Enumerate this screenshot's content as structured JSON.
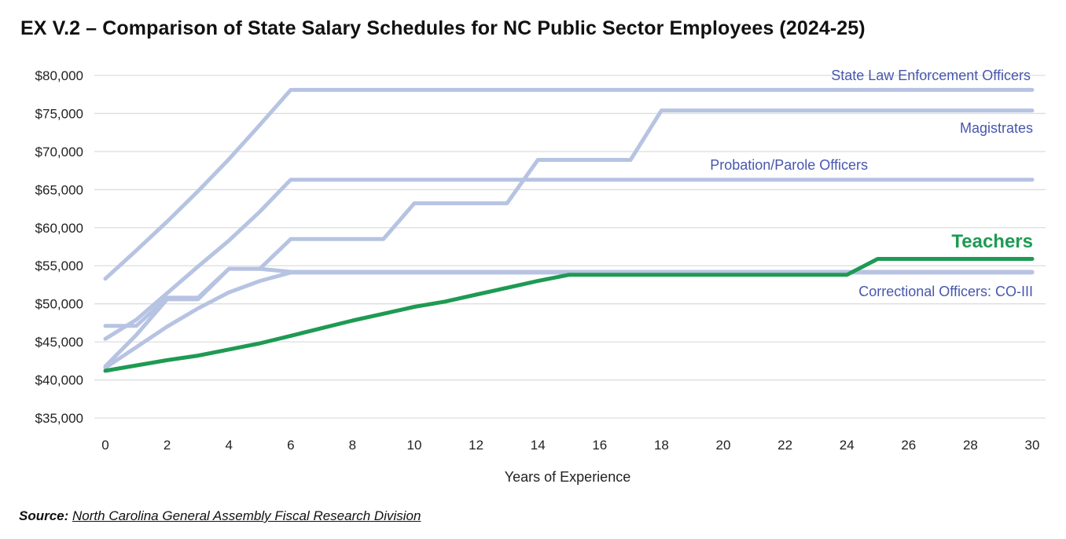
{
  "title": "EX V.2 – Comparison of State Salary Schedules for NC Public Sector Employees (2024-25)",
  "source": {
    "label": "Source:",
    "text": "North Carolina General Assembly Fiscal Research Division"
  },
  "colors": {
    "other": "#b7c3e2",
    "teachers": "#1e9a53",
    "label_blue": "#4757ad",
    "grid": "#dddddd",
    "axis_text": "#222222"
  },
  "chart_data": {
    "type": "line",
    "title": "EX V.2 – Comparison of State Salary Schedules for NC Public Sector Employees (2024-25)",
    "xlabel": "Years of Experience",
    "ylabel": "",
    "xlim": [
      0,
      30
    ],
    "ylim": [
      35000,
      80000
    ],
    "grid": true,
    "x_ticks": [
      0,
      2,
      4,
      6,
      8,
      10,
      12,
      14,
      16,
      18,
      20,
      22,
      24,
      26,
      28,
      30
    ],
    "x_tick_labels": [
      "0",
      "2",
      "4",
      "6",
      "8",
      "10",
      "12",
      "14",
      "16",
      "18",
      "20",
      "22",
      "24",
      "26",
      "28",
      "30"
    ],
    "y_ticks": [
      35000,
      40000,
      45000,
      50000,
      55000,
      60000,
      65000,
      70000,
      75000,
      80000
    ],
    "y_tick_labels": [
      "$35,000",
      "$40,000",
      "$45,000",
      "$50,000",
      "$55,000",
      "$60,000",
      "$65,000",
      "$70,000",
      "$75,000",
      "$80,000"
    ],
    "series": [
      {
        "name": "State Law Enforcement Officers",
        "color": "#b7c3e2",
        "x": [
          0,
          1,
          2,
          3,
          4,
          5,
          6,
          30
        ],
        "y": [
          53300,
          57000,
          60800,
          64800,
          69000,
          73500,
          78100,
          78100
        ]
      },
      {
        "name": "Magistrates",
        "color": "#b7c3e2",
        "x": [
          0,
          1,
          2,
          3,
          4,
          5,
          6,
          9,
          10,
          13,
          14,
          17,
          18,
          30
        ],
        "y": [
          41800,
          45900,
          50600,
          50600,
          54600,
          54600,
          58500,
          58500,
          63200,
          63200,
          68900,
          68900,
          75400,
          75400
        ]
      },
      {
        "name": "Probation/Parole Officers",
        "color": "#b7c3e2",
        "x": [
          0,
          1,
          2,
          3,
          4,
          5,
          6,
          30
        ],
        "y": [
          45400,
          47900,
          51400,
          54900,
          58300,
          62100,
          66300,
          66300
        ]
      },
      {
        "name": "Correctional Officers: CO-III",
        "color": "#b7c3e2",
        "x": [
          0,
          1,
          2,
          3,
          4,
          5,
          6,
          30
        ],
        "y": [
          47100,
          47100,
          50800,
          50800,
          54600,
          54600,
          54200,
          54200
        ]
      },
      {
        "name": "Correctional Officers: CO-III",
        "color": "#b7c3e2",
        "x": [
          0,
          1,
          2,
          3,
          4,
          5,
          6,
          30
        ],
        "y": [
          41600,
          44300,
          47000,
          49400,
          51500,
          53000,
          54100,
          54100
        ]
      },
      {
        "name": "Teachers",
        "color": "#1e9a53",
        "x": [
          0,
          2,
          3,
          4,
          5,
          6,
          7,
          8,
          9,
          10,
          11,
          12,
          13,
          14,
          15,
          24,
          25,
          30
        ],
        "y": [
          41200,
          42600,
          43200,
          44000,
          44800,
          45800,
          46800,
          47800,
          48700,
          49600,
          50300,
          51200,
          52100,
          53000,
          53800,
          53800,
          55900,
          55900
        ]
      }
    ],
    "annotations": [
      {
        "text": "State Law Enforcement Officers",
        "series": "State Law Enforcement Officers"
      },
      {
        "text": "Magistrates",
        "series": "Magistrates"
      },
      {
        "text": "Probation/Parole Officers",
        "series": "Probation/Parole Officers"
      },
      {
        "text": "Teachers",
        "series": "Teachers"
      },
      {
        "text": "Correctional Officers: CO-III",
        "series": "Correctional Officers: CO-III"
      }
    ]
  }
}
